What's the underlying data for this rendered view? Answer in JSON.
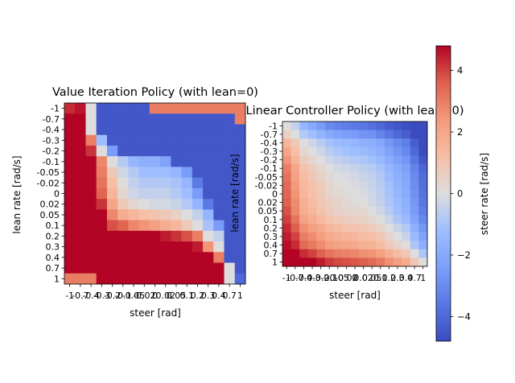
{
  "tick_labels": [
    "-1",
    "-0.7",
    "-0.4",
    "-0.3",
    "-0.2",
    "-0.1",
    "-0.05",
    "-0.02",
    "0",
    "0.02",
    "0.05",
    "0.1",
    "0.2",
    "0.3",
    "0.4",
    "0.7",
    "1"
  ],
  "colormap": {
    "name": "coolwarm",
    "low": "#3b4cc0",
    "mid": "#dddddd",
    "high": "#b40426"
  },
  "chart_data": [
    {
      "type": "heatmap",
      "title": "Value Iteration Policy (with lean=0)",
      "xlabel": "steer [rad]",
      "ylabel": "lean rate [rad/s]",
      "x": [
        "-1",
        "-0.7",
        "-0.4",
        "-0.3",
        "-0.2",
        "-0.1",
        "-0.05",
        "-0.02",
        "0",
        "0.02",
        "0.05",
        "0.1",
        "0.2",
        "0.3",
        "0.4",
        "0.7",
        "1"
      ],
      "y": [
        "-1",
        "-0.7",
        "-0.4",
        "-0.3",
        "-0.2",
        "-0.1",
        "-0.05",
        "-0.02",
        "0",
        "0.02",
        "0.05",
        "0.1",
        "0.2",
        "0.3",
        "0.4",
        "0.7",
        "1"
      ],
      "values": [
        [
          4.3,
          4.6,
          0,
          -4.5,
          -4.5,
          -4.5,
          -4.5,
          -4.5,
          3,
          3,
          3,
          3,
          3,
          3,
          3,
          3,
          3
        ],
        [
          4.8,
          4.8,
          0,
          -4.5,
          -4.5,
          -4.5,
          -4.5,
          -4.5,
          -4.5,
          -4.5,
          -4.5,
          -4.5,
          -4.5,
          -4.5,
          -4.5,
          -4.5,
          3
        ],
        [
          4.8,
          4.8,
          0,
          -4.5,
          -4.5,
          -4.5,
          -4.5,
          -4.5,
          -4.5,
          -4.5,
          -4.5,
          -4.5,
          -4.5,
          -4.5,
          -4.5,
          -4.5,
          -4.5
        ],
        [
          4.8,
          4.8,
          3,
          -1.2,
          -4.5,
          -4.5,
          -4.5,
          -4.5,
          -4.5,
          -4.5,
          -4.5,
          -4.5,
          -4.5,
          -4.5,
          -4.5,
          -4.5,
          -4.5
        ],
        [
          4.8,
          4.8,
          4.2,
          0,
          -2.5,
          -4.5,
          -4.5,
          -4.5,
          -4.5,
          -4.5,
          -4.5,
          -4.5,
          -4.5,
          -4.5,
          -4.5,
          -4.5,
          -4.5
        ],
        [
          4.8,
          4.8,
          4.8,
          2.8,
          0,
          -0.8,
          -1.5,
          -1.8,
          -1.8,
          -2.2,
          -4.5,
          -4.5,
          -4.5,
          -4.5,
          -4.5,
          -4.5,
          -4.5
        ],
        [
          4.8,
          4.8,
          4.8,
          3,
          0.8,
          -0.3,
          -0.8,
          -1.2,
          -1.2,
          -1.2,
          -1.5,
          -2.5,
          -4.5,
          -4.5,
          -4.5,
          -4.5,
          -4.5
        ],
        [
          4.8,
          4.8,
          4.8,
          3.2,
          1.2,
          0,
          -0.5,
          -0.8,
          -0.8,
          -0.8,
          -1,
          -1.5,
          -3.5,
          -4.5,
          -4.5,
          -4.5,
          -4.5
        ],
        [
          4.8,
          4.8,
          4.8,
          3.5,
          1.5,
          0.3,
          -0.3,
          -0.5,
          -0.5,
          -0.5,
          -0.8,
          -1.2,
          -2.5,
          -4.5,
          -4.5,
          -4.5,
          -4.5
        ],
        [
          4.8,
          4.8,
          4.8,
          4.2,
          2,
          0.8,
          0.3,
          0,
          -0.2,
          -0.2,
          -0.4,
          -0.8,
          -1.5,
          -3.5,
          -4.5,
          -4.5,
          -4.5
        ],
        [
          4.8,
          4.8,
          4.8,
          4.8,
          2.8,
          1.8,
          1.5,
          1.2,
          1,
          0.8,
          0.5,
          0,
          -0.5,
          -1.5,
          -4.5,
          -4.5,
          -4.5
        ],
        [
          4.8,
          4.8,
          4.8,
          4.8,
          3.8,
          3.5,
          2.8,
          2.5,
          2.2,
          1.8,
          1.5,
          0.8,
          0,
          -1,
          -2.5,
          -4.5,
          -4.5
        ],
        [
          4.8,
          4.8,
          4.8,
          4.8,
          4.8,
          4.8,
          4.8,
          4.8,
          4.8,
          4.5,
          4.2,
          3.8,
          3,
          0,
          -0.5,
          -4.5,
          -4.5
        ],
        [
          4.8,
          4.8,
          4.8,
          4.8,
          4.8,
          4.8,
          4.8,
          4.8,
          4.8,
          4.8,
          4.8,
          4.8,
          4.5,
          2.5,
          0,
          -4.5,
          -4.5
        ],
        [
          4.8,
          4.8,
          4.8,
          4.8,
          4.8,
          4.8,
          4.8,
          4.8,
          4.8,
          4.8,
          4.8,
          4.8,
          4.8,
          4.8,
          3,
          -4.5,
          -4.5
        ],
        [
          4.8,
          4.8,
          4.8,
          4.8,
          4.8,
          4.8,
          4.8,
          4.8,
          4.8,
          4.8,
          4.8,
          4.8,
          4.8,
          4.8,
          4.8,
          0,
          -4.5
        ],
        [
          3,
          3,
          3,
          4.8,
          4.8,
          4.8,
          4.8,
          4.8,
          4.8,
          4.8,
          4.8,
          4.8,
          4.8,
          4.8,
          4.8,
          0,
          -4
        ]
      ],
      "vmin": -4.8,
      "vmax": 4.8
    },
    {
      "type": "heatmap",
      "title": "Linear Controller Policy (with lean=0)",
      "xlabel": "steer [rad]",
      "ylabel": "lean rate [rad/s]",
      "x": [
        "-1",
        "-0.7",
        "-0.4",
        "-0.3",
        "-0.2",
        "-0.1",
        "-0.05",
        "-0.02",
        "0",
        "0.02",
        "0.05",
        "0.1",
        "0.2",
        "0.3",
        "0.4",
        "0.7",
        "1"
      ],
      "y": [
        "-1",
        "-0.7",
        "-0.4",
        "-0.3",
        "-0.2",
        "-0.1",
        "-0.05",
        "-0.02",
        "0",
        "0.02",
        "0.05",
        "0.1",
        "0.2",
        "0.3",
        "0.4",
        "0.7",
        "1"
      ],
      "values": [
        [
          0,
          -0.5,
          -1.5,
          -2,
          -2.5,
          -3,
          -3.2,
          -3.4,
          -3.5,
          -3.6,
          -3.8,
          -4,
          -4.3,
          -4.5,
          -4.7,
          -4.8,
          -4.8
        ],
        [
          0.5,
          0,
          -0.8,
          -1.2,
          -1.6,
          -2,
          -2.2,
          -2.4,
          -2.5,
          -2.7,
          -2.8,
          -3.2,
          -3.6,
          -4,
          -4.3,
          -4.8,
          -4.8
        ],
        [
          1.5,
          0.8,
          0,
          -0.3,
          -0.7,
          -1.1,
          -1.3,
          -1.4,
          -1.5,
          -1.7,
          -1.8,
          -2.1,
          -2.6,
          -3,
          -3.4,
          -4.3,
          -4.8
        ],
        [
          2,
          1.2,
          0.3,
          0,
          -0.3,
          -0.7,
          -0.9,
          -1.1,
          -1.2,
          -1.3,
          -1.5,
          -1.8,
          -2.2,
          -2.7,
          -3.1,
          -4,
          -4.8
        ],
        [
          2.5,
          1.6,
          0.7,
          0.3,
          0,
          -0.3,
          -0.5,
          -0.7,
          -0.8,
          -0.9,
          -1.1,
          -1.4,
          -1.9,
          -2.3,
          -2.7,
          -3.6,
          -4.5
        ],
        [
          3,
          2,
          1.1,
          0.7,
          0.3,
          0,
          -0.2,
          -0.3,
          -0.4,
          -0.6,
          -0.7,
          -1,
          -1.5,
          -1.9,
          -2.3,
          -3.2,
          -4.1
        ],
        [
          3.2,
          2.2,
          1.3,
          0.9,
          0.5,
          0.2,
          0,
          -0.1,
          -0.2,
          -0.4,
          -0.5,
          -0.8,
          -1.3,
          -1.7,
          -2.1,
          -3,
          -3.9
        ],
        [
          3.4,
          2.4,
          1.4,
          1.1,
          0.7,
          0.3,
          0.1,
          0,
          -0.1,
          -0.2,
          -0.4,
          -0.7,
          -1.1,
          -1.6,
          -2,
          -2.9,
          -3.8
        ],
        [
          3.5,
          2.5,
          1.5,
          1.2,
          0.8,
          0.4,
          0.2,
          0.1,
          0,
          -0.1,
          -0.3,
          -0.6,
          -1,
          -1.5,
          -1.9,
          -2.8,
          -3.7
        ],
        [
          3.6,
          2.7,
          1.7,
          1.3,
          0.9,
          0.6,
          0.4,
          0.2,
          0.1,
          0,
          -0.2,
          -0.5,
          -0.9,
          -1.3,
          -1.7,
          -2.6,
          -3.6
        ],
        [
          3.8,
          2.8,
          1.8,
          1.5,
          1.1,
          0.7,
          0.5,
          0.4,
          0.3,
          0.2,
          0,
          -0.3,
          -0.7,
          -1.2,
          -1.6,
          -2.5,
          -3.4
        ],
        [
          4,
          3.2,
          2.1,
          1.8,
          1.4,
          1,
          0.8,
          0.7,
          0.6,
          0.5,
          0.3,
          0,
          -0.4,
          -0.9,
          -1.3,
          -2.2,
          -3.1
        ],
        [
          4.3,
          3.6,
          2.6,
          2.2,
          1.9,
          1.5,
          1.3,
          1.1,
          1,
          0.9,
          0.7,
          0.4,
          0,
          -0.4,
          -0.8,
          -1.7,
          -2.6
        ],
        [
          4.5,
          4,
          3,
          2.7,
          2.3,
          1.9,
          1.7,
          1.6,
          1.5,
          1.3,
          1.2,
          0.9,
          0.4,
          0,
          -0.4,
          -1.3,
          -2.2
        ],
        [
          4.7,
          4.3,
          3.4,
          3.1,
          2.7,
          2.3,
          2.1,
          2,
          1.9,
          1.7,
          1.6,
          1.3,
          0.8,
          0.4,
          0,
          -0.9,
          -1.8
        ],
        [
          4.8,
          4.8,
          4.3,
          4,
          3.6,
          3.2,
          3,
          2.9,
          2.8,
          2.6,
          2.5,
          2.2,
          1.7,
          1.3,
          0.9,
          0,
          -0.9
        ],
        [
          4.8,
          4.8,
          4.8,
          4.8,
          4.5,
          4.1,
          3.9,
          3.8,
          3.7,
          3.6,
          3.4,
          3.1,
          2.6,
          2.2,
          1.8,
          0.9,
          0
        ]
      ],
      "vmin": -4.8,
      "vmax": 4.8
    }
  ],
  "colorbar": {
    "label": "steer rate [rad/s]",
    "ticks": [
      -4,
      -2,
      0,
      2,
      4
    ],
    "tick_labels": [
      "−4",
      "−2",
      "0",
      "2",
      "4"
    ],
    "vmin": -4.8,
    "vmax": 4.8
  }
}
